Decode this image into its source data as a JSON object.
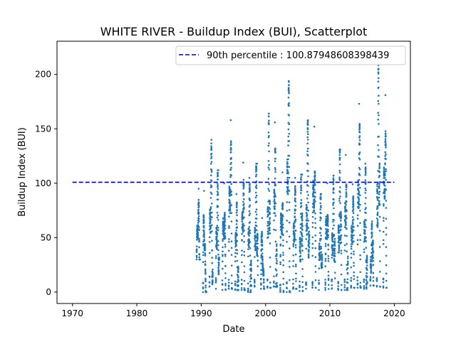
{
  "chart_data": {
    "type": "scatter",
    "title": "WHITE RIVER - Buildup Index (BUI), Scatterplot",
    "xlabel": "Date",
    "ylabel": "Buildup Index (BUI)",
    "xlim": [
      1967.6,
      2022.5
    ],
    "ylim": [
      -10.5,
      230.5
    ],
    "xticks": [
      1970,
      1980,
      1990,
      2000,
      2010,
      2020
    ],
    "yticks": [
      0,
      50,
      100,
      150,
      200
    ],
    "grid": false,
    "legend_position": "upper right",
    "legend": [
      {
        "label": "90th percentile : 100.87948608398439",
        "style": "dashed",
        "color": "#0000cc"
      }
    ],
    "percentile_line": {
      "y": 100.87948608398439,
      "x_start": 1970,
      "x_end": 2020
    },
    "point_color": "#1f77b4",
    "seasons": [
      {
        "year": 1989,
        "low": 30,
        "high": 95
      },
      {
        "year": 1990,
        "low": 0,
        "high": 93
      },
      {
        "year": 1991,
        "low": 5,
        "high": 140
      },
      {
        "year": 1992,
        "low": 3,
        "high": 112
      },
      {
        "year": 1993,
        "low": 2,
        "high": 100
      },
      {
        "year": 1994,
        "low": 3,
        "high": 158
      },
      {
        "year": 1995,
        "low": 2,
        "high": 90
      },
      {
        "year": 1996,
        "low": 2,
        "high": 119
      },
      {
        "year": 1997,
        "low": 0,
        "high": 105
      },
      {
        "year": 1998,
        "low": 5,
        "high": 118
      },
      {
        "year": 1999,
        "low": 3,
        "high": 68
      },
      {
        "year": 2000,
        "low": 4,
        "high": 164
      },
      {
        "year": 2001,
        "low": 5,
        "high": 156
      },
      {
        "year": 2002,
        "low": 0,
        "high": 110
      },
      {
        "year": 2003,
        "low": 0,
        "high": 210
      },
      {
        "year": 2004,
        "low": 3,
        "high": 105
      },
      {
        "year": 2005,
        "low": 1,
        "high": 108
      },
      {
        "year": 2006,
        "low": 3,
        "high": 158
      },
      {
        "year": 2007,
        "low": 4,
        "high": 152
      },
      {
        "year": 2008,
        "low": 2,
        "high": 90
      },
      {
        "year": 2009,
        "low": 2,
        "high": 100
      },
      {
        "year": 2010,
        "low": 3,
        "high": 107
      },
      {
        "year": 2011,
        "low": 2,
        "high": 131
      },
      {
        "year": 2012,
        "low": 2,
        "high": 126
      },
      {
        "year": 2013,
        "low": 4,
        "high": 99
      },
      {
        "year": 2014,
        "low": 4,
        "high": 173
      },
      {
        "year": 2015,
        "low": 3,
        "high": 118
      },
      {
        "year": 2016,
        "low": 6,
        "high": 65
      },
      {
        "year": 2017,
        "low": 5,
        "high": 210
      },
      {
        "year": 2018,
        "low": 4,
        "high": 181
      }
    ]
  }
}
